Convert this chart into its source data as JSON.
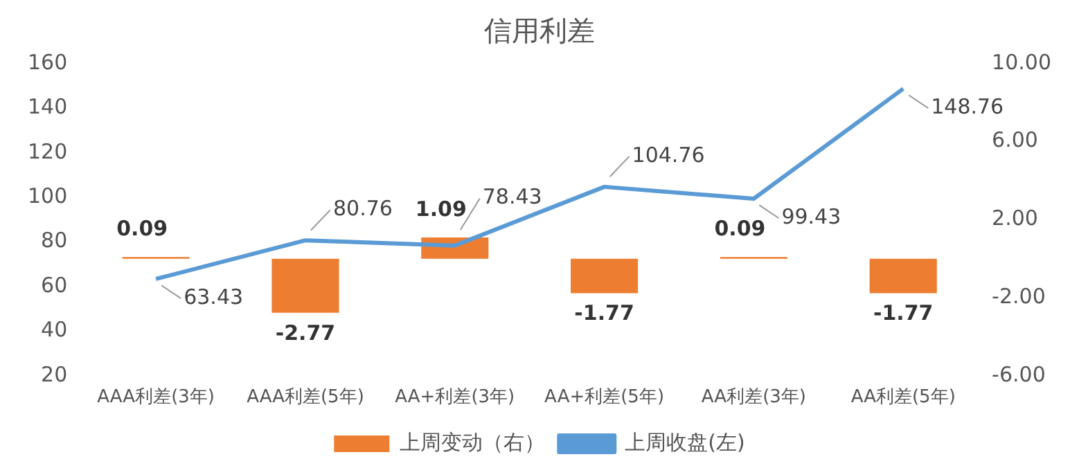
{
  "chart_data": {
    "type": "bar",
    "title": "信用利差",
    "categories": [
      "AAA利差(3年)",
      "AAA利差(5年)",
      "AA+利差(3年)",
      "AA+利差(5年)",
      "AA利差(3年)",
      "AA利差(5年)"
    ],
    "series": [
      {
        "name": "上周变动（右）",
        "axis": "y2",
        "color": "#ed7d31",
        "values": [
          0.09,
          -2.77,
          1.09,
          -1.77,
          0.09,
          -1.77
        ]
      },
      {
        "name": "上周收盘(左)",
        "type": "line",
        "color": "#5b9bd5",
        "values": [
          63.43,
          80.76,
          78.43,
          104.76,
          99.43,
          148.76
        ]
      }
    ],
    "ylim": [
      20,
      160
    ],
    "yticks": [
      20,
      40,
      60,
      80,
      100,
      120,
      140,
      160
    ],
    "y2lim": [
      -6,
      10
    ],
    "y2ticks": [
      {
        "value": -6,
        "label": "-6.00"
      },
      {
        "value": -2,
        "label": "-2.00"
      },
      {
        "value": 2,
        "label": "2.00"
      },
      {
        "value": 6,
        "label": "6.00"
      },
      {
        "value": 10,
        "label": "10.00"
      }
    ],
    "data_labels": true,
    "grid": false,
    "legend": "bottom",
    "marker": "none",
    "line_style": "solid"
  }
}
